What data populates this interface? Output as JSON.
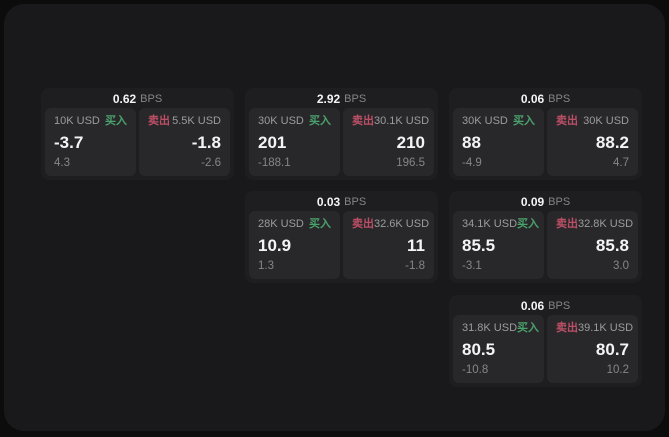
{
  "theme": {
    "backdrop": "#0c0c0c",
    "window_bg": "#19191b",
    "card_bg": "#1e1e20",
    "panel_bg": "#28282b",
    "text_primary": "#f4f4f6",
    "text_muted": "#9c9c9f",
    "text_dim": "#85858a",
    "buy_green": "#4aa16c",
    "sell_red": "#bc4f66"
  },
  "labels": {
    "bps_unit": "BPS",
    "buy": "买入",
    "sell": "卖出"
  },
  "cards": [
    {
      "bps": "0.62",
      "buy": {
        "amount": "10K USD",
        "value": "-3.7",
        "delta": "4.3"
      },
      "sell": {
        "amount": "5.5K USD",
        "value": "-1.8",
        "delta": "-2.6"
      }
    },
    {
      "bps": "2.92",
      "buy": {
        "amount": "30K USD",
        "value": "201",
        "delta": "-188.1"
      },
      "sell": {
        "amount": "30.1K USD",
        "value": "210",
        "delta": "196.5"
      }
    },
    {
      "bps": "0.06",
      "buy": {
        "amount": "30K USD",
        "value": "88",
        "delta": "-4.9"
      },
      "sell": {
        "amount": "30K USD",
        "value": "88.2",
        "delta": "4.7"
      }
    },
    {
      "bps": "0.03",
      "buy": {
        "amount": "28K USD",
        "value": "10.9",
        "delta": "1.3"
      },
      "sell": {
        "amount": "32.6K USD",
        "value": "11",
        "delta": "-1.8"
      }
    },
    {
      "bps": "0.09",
      "buy": {
        "amount": "34.1K USD",
        "value": "85.5",
        "delta": "-3.1"
      },
      "sell": {
        "amount": "32.8K USD",
        "value": "85.8",
        "delta": "3.0"
      }
    },
    {
      "bps": "0.06",
      "buy": {
        "amount": "31.8K USD",
        "value": "80.5",
        "delta": "-10.8"
      },
      "sell": {
        "amount": "39.1K USD",
        "value": "80.7",
        "delta": "10.2"
      }
    }
  ]
}
